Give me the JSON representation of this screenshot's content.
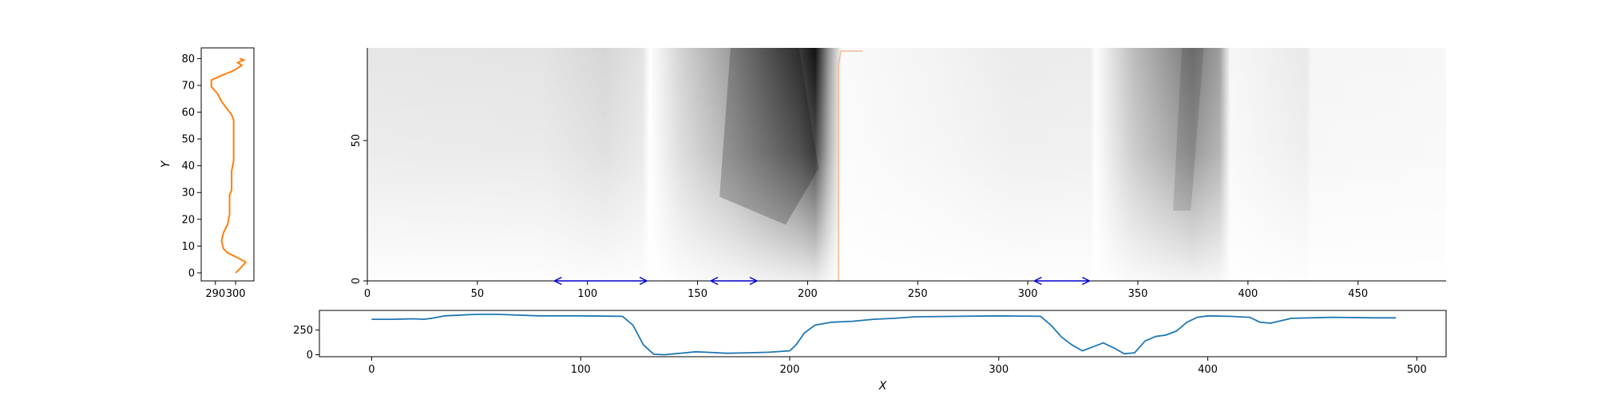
{
  "chart_data": [
    {
      "type": "line",
      "panel": "left-profile",
      "xlabel": "",
      "ylabel": "Y",
      "xticks": [
        290,
        300
      ],
      "xlim": [
        283,
        309
      ],
      "yticks": [
        0,
        10,
        20,
        30,
        40,
        50,
        60,
        70,
        80
      ],
      "ylim": [
        -3,
        84
      ],
      "line_color": "#ff7f0e",
      "series": [
        {
          "x": [
            300,
            302,
            305,
            300,
            296,
            294,
            293,
            294,
            296,
            297,
            297,
            297,
            298,
            298,
            298,
            299,
            299,
            299,
            299,
            298,
            296,
            293,
            291,
            288,
            288,
            294,
            299,
            301,
            303,
            301,
            304,
            302
          ],
          "y": [
            0,
            1.5,
            4,
            6,
            7.5,
            9,
            12,
            15,
            18,
            22,
            26,
            29,
            31,
            34,
            38,
            42,
            47,
            52,
            57,
            59,
            61,
            64,
            67,
            69.5,
            72,
            74,
            75.5,
            76.5,
            77.5,
            78.5,
            79.5,
            80
          ]
        }
      ]
    },
    {
      "type": "heatmap",
      "panel": "main-image",
      "xticks": [
        0,
        50,
        100,
        150,
        200,
        250,
        300,
        350,
        400,
        450
      ],
      "yticks": [
        0,
        50
      ],
      "xlim": [
        0,
        490
      ],
      "ylim": [
        0,
        83
      ],
      "colormap": "grayscale",
      "vertical_marker_x": 214,
      "marker_color": "#f5b894",
      "arrow_color": "#0000cc",
      "arrows": [
        {
          "x0": 85,
          "x1": 127
        },
        {
          "x0": 156,
          "x1": 177
        },
        {
          "x0": 303,
          "x1": 328
        }
      ]
    },
    {
      "type": "line",
      "panel": "bottom-profile",
      "xlabel": "X",
      "ylabel": "",
      "xticks": [
        0,
        100,
        200,
        300,
        400,
        500
      ],
      "xlim": [
        -25,
        514
      ],
      "yticks": [
        0,
        250
      ],
      "ylim": [
        -20,
        450
      ],
      "line_color": "#1f77b4",
      "series": [
        {
          "x": [
            0,
            10,
            20,
            25,
            30,
            35,
            40,
            50,
            60,
            80,
            100,
            120,
            125,
            130,
            135,
            140,
            145,
            150,
            155,
            160,
            170,
            180,
            190,
            200,
            203,
            207,
            212,
            220,
            230,
            240,
            250,
            260,
            280,
            300,
            320,
            325,
            330,
            335,
            340,
            345,
            350,
            355,
            360,
            365,
            370,
            375,
            380,
            385,
            390,
            395,
            400,
            410,
            420,
            425,
            430,
            440,
            460,
            480,
            490
          ],
          "y": [
            360,
            360,
            365,
            360,
            375,
            395,
            400,
            410,
            410,
            395,
            395,
            390,
            300,
            100,
            5,
            0,
            10,
            20,
            30,
            25,
            15,
            20,
            25,
            40,
            100,
            220,
            300,
            330,
            340,
            360,
            370,
            385,
            390,
            395,
            390,
            300,
            180,
            100,
            40,
            80,
            120,
            70,
            10,
            20,
            140,
            185,
            200,
            240,
            330,
            380,
            395,
            390,
            380,
            330,
            320,
            370,
            380,
            375,
            375
          ]
        }
      ]
    }
  ]
}
